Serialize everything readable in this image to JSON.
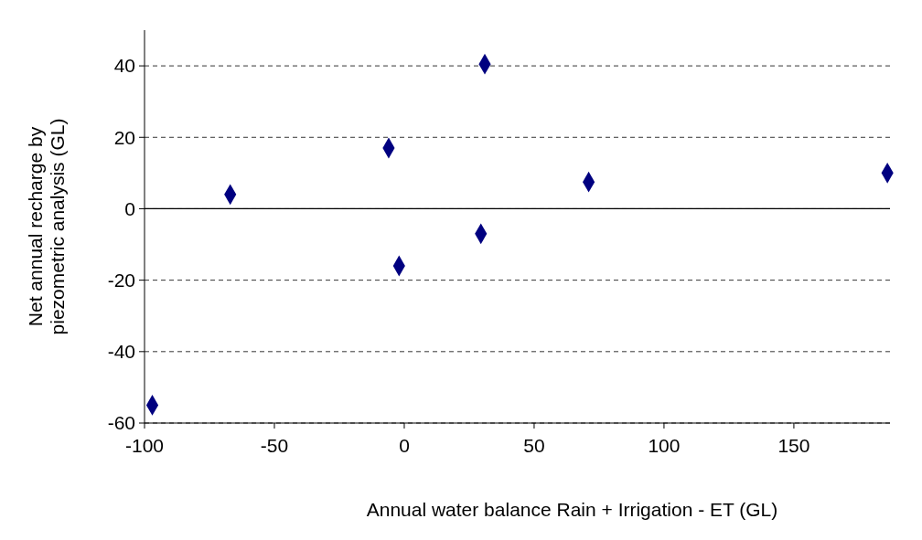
{
  "chart_data": {
    "type": "scatter",
    "xlabel": "Annual water balance Rain + Irrigation - ET (GL)",
    "ylabel": "Net annual recharge by piezometric analysis (GL)",
    "x": [
      -97,
      -67,
      -6,
      -2,
      29.5,
      31,
      71,
      186
    ],
    "values": [
      -55,
      4,
      17,
      -16,
      -7,
      40.5,
      7.5,
      10
    ],
    "color": "#000080",
    "marker": "diamond",
    "xlim": [
      -100,
      187
    ],
    "xticks": [
      -100,
      -50,
      0,
      50,
      100,
      150
    ],
    "ylim": [
      -60,
      50
    ],
    "yticks": [
      -60,
      -40,
      -20,
      0,
      20,
      40
    ],
    "grid": "y",
    "line_style": "dashed",
    "ref_lines": [
      {
        "axis": "y",
        "value": 0,
        "color": "#000000",
        "line_style": "solid"
      }
    ]
  }
}
